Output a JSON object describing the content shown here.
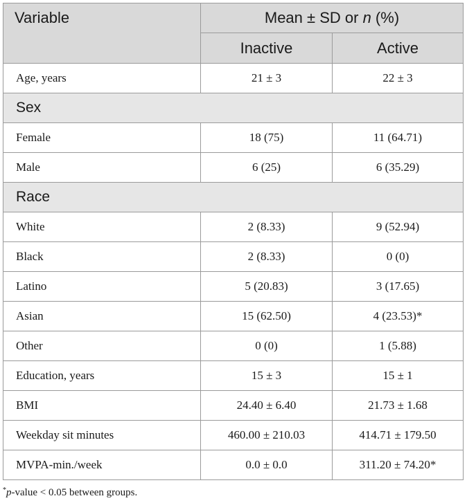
{
  "header": {
    "variable": "Variable",
    "group_caption_prefix": "Mean ± SD or ",
    "group_caption_n": "n",
    "group_caption_suffix": " (%)",
    "col_inactive": "Inactive",
    "col_active": "Active"
  },
  "rows": {
    "age": {
      "label": "Age, years",
      "inactive": "21 ± 3",
      "active": "22 ± 3"
    },
    "sex_section": "Sex",
    "female": {
      "label": "Female",
      "inactive": "18 (75)",
      "active": "11 (64.71)"
    },
    "male": {
      "label": "Male",
      "inactive": "6 (25)",
      "active": "6 (35.29)"
    },
    "race_section": "Race",
    "white": {
      "label": "White",
      "inactive": "2 (8.33)",
      "active": "9 (52.94)"
    },
    "black": {
      "label": "Black",
      "inactive": "2 (8.33)",
      "active": "0 (0)"
    },
    "latino": {
      "label": "Latino",
      "inactive": "5 (20.83)",
      "active": "3 (17.65)"
    },
    "asian": {
      "label": "Asian",
      "inactive": "15 (62.50)",
      "active": "4 (23.53)*"
    },
    "other": {
      "label": "Other",
      "inactive": "0 (0)",
      "active": "1 (5.88)"
    },
    "education": {
      "label": "Education, years",
      "inactive": "15 ± 3",
      "active": "15 ± 1"
    },
    "bmi": {
      "label": "BMI",
      "inactive": "24.40 ± 6.40",
      "active": "21.73 ± 1.68"
    },
    "sit": {
      "label": "Weekday sit minutes",
      "inactive": "460.00 ± 210.03",
      "active": "414.71 ± 179.50"
    },
    "mvpa": {
      "label": "MVPA-min./week",
      "inactive": "0.0 ± 0.0",
      "active": "311.20 ± 74.20*"
    }
  },
  "footnote": {
    "marker": "*",
    "p": "p",
    "text": "-value < 0.05 between groups."
  }
}
